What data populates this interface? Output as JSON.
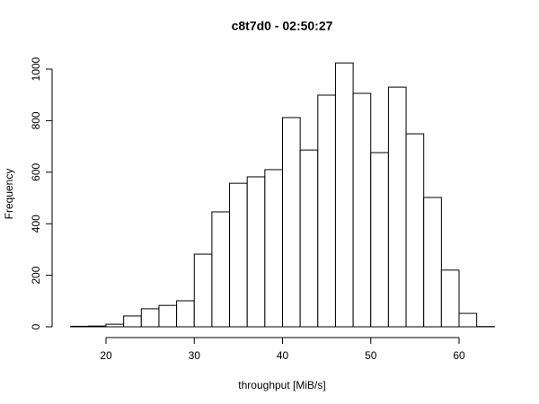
{
  "chart_data": {
    "type": "histogram",
    "title": "c8t7d0 - 02:50:27",
    "x_label": "throughput [MiB/s]",
    "y_label": "Frequency",
    "bins": [
      16,
      18,
      20,
      22,
      24,
      26,
      28,
      30,
      32,
      34,
      36,
      38,
      40,
      42,
      44,
      46,
      48,
      50,
      52,
      54,
      56,
      58,
      60,
      62,
      64
    ],
    "counts": [
      2,
      3,
      10,
      42,
      70,
      83,
      101,
      282,
      446,
      557,
      582,
      610,
      812,
      686,
      899,
      1024,
      906,
      676,
      930,
      749,
      502,
      220,
      52,
      1
    ],
    "color": "#ffffff",
    "xlim": [
      20,
      60
    ],
    "xticks": [
      20,
      30,
      40,
      50,
      60
    ],
    "ylim": [
      0,
      1000
    ],
    "yticks": [
      0,
      200,
      400,
      600,
      800,
      1000
    ]
  }
}
